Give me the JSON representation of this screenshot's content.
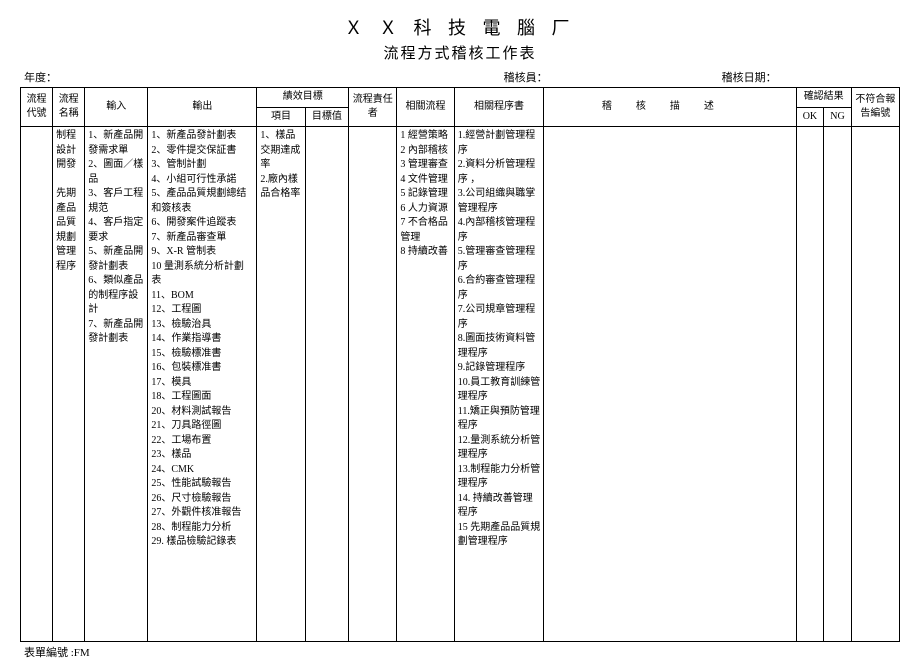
{
  "header": {
    "company": "Ｘ Ｘ 科 技 電 腦 厂",
    "title": "流程方式稽核工作表",
    "year_label": "年度：",
    "auditor_label": "稽核員：",
    "date_label": "稽核日期："
  },
  "columns": {
    "code": "流程代號",
    "name": "流程名稱",
    "input": "輸入",
    "output": "輸出",
    "perf_top": "績效目標",
    "perf_item": "項目",
    "perf_val": "目標值",
    "owner": "流程責任者",
    "rel_proc": "相關流程",
    "rel_doc": "相關程序書",
    "desc": "稽核描述",
    "confirm": "確認結果",
    "ok": "OK",
    "ng": "NG",
    "nc": "不符合報告編號"
  },
  "widths": {
    "code": 28,
    "name": 28,
    "input": 55,
    "output": 95,
    "perf_item": 42,
    "perf_val": 38,
    "owner": 42,
    "rel_proc": 50,
    "rel_doc": 78,
    "desc": 220,
    "ok": 24,
    "ng": 24,
    "nc": 42
  },
  "row": {
    "code": "",
    "name": "制程設計開發\n\n先期產品品質規劃管理程序",
    "input": "1、新產品開發需求單\n2、圖面／樣品\n3、客戶工程規范\n4、客戶指定要求\n5、新產品開發計劃表\n6、類似產品的制程序設計\n7、新產品開發計劃表",
    "output": "1、新產品發計劃表\n2、零件提交保証書\n3、管制計劃\n4、小組可行性承諾\n5、產品品質規劃總结和簽核表\n6、開發案件追蹤表\n7、新產品審查單\n9、X-R 管制表\n10 量測系統分析計劃表\n11、BOM\n12、工程圖\n13、檢驗治具\n14、作業指導書\n15、檢驗標准書\n16、包裝標准書\n17、模具\n18、工程圖面\n20、材料測試報告\n21、刀具路徑圖\n22、工場布置\n23、樣品\n24、CMK\n25、性能試驗報告\n26、尺寸檢驗報告\n27、外觀件核准報告\n28、制程能力分析\n29. 樣品檢驗記錄表",
    "perf_item": "1、樣品交期達成率\n2.廠內樣品合格率",
    "perf_val": "",
    "owner": "",
    "rel_proc": "1 經營策略\n2 內部稽核\n3 管理審查\n4 文件管理\n5 記錄管理\n6 人力資源\n7 不合格品管理\n8 持續改善",
    "rel_doc": "1.經營計劃管理程序\n2.資料分析管理程序 ，\n3.公司組織與職掌管理程序\n4.內部稽核管理程序\n5.管理審查管理程序\n6.合約審查管理程序\n7.公司規章管理程序\n8.圖面技術資料管理程序\n9.記錄管理程序\n10.員工教育訓練管理程序\n11.矯正與預防管理程序\n12.量測系統分析管理程序\n13.制程能力分析管理程序\n14. 持續改善管理程序\n15 先期產品品質規劃管理程序",
    "desc": "",
    "ok": "",
    "ng": "",
    "nc": ""
  },
  "footer": "表單編號 :FM"
}
